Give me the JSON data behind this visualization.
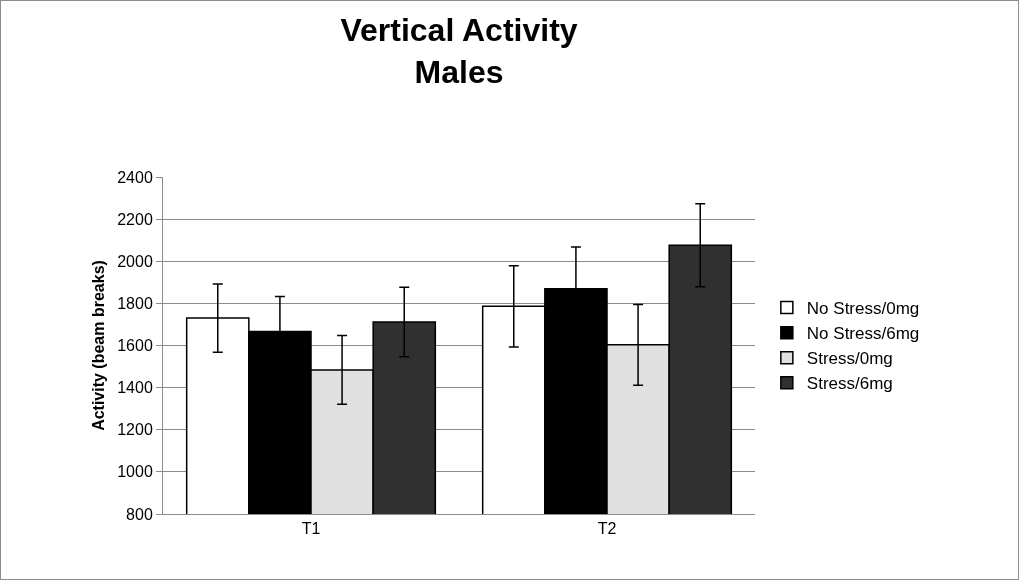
{
  "chart_data": {
    "type": "bar",
    "title": "Vertical Activity\nMales",
    "ylabel": "Activity (beam breaks)",
    "categories": [
      "T1",
      "T2"
    ],
    "series": [
      {
        "name": "No Stress/0mg",
        "color": "#ffffff",
        "values": [
          1730,
          1786
        ],
        "errors": [
          162,
          193
        ]
      },
      {
        "name": "No Stress/6mg",
        "color": "#000000",
        "values": [
          1667,
          1870
        ],
        "errors": [
          166,
          198
        ]
      },
      {
        "name": "Stress/0mg",
        "color": "#e0e0e0",
        "values": [
          1484,
          1603
        ],
        "errors": [
          163,
          192
        ]
      },
      {
        "name": "Stress/6mg",
        "color": "#303030",
        "values": [
          1711,
          2076
        ],
        "errors": [
          165,
          197
        ]
      }
    ],
    "ylim": [
      800,
      2400
    ],
    "yticks": [
      800,
      1000,
      1200,
      1400,
      1600,
      1800,
      2000,
      2200,
      2400
    ],
    "grid": "y",
    "legend": "right"
  }
}
